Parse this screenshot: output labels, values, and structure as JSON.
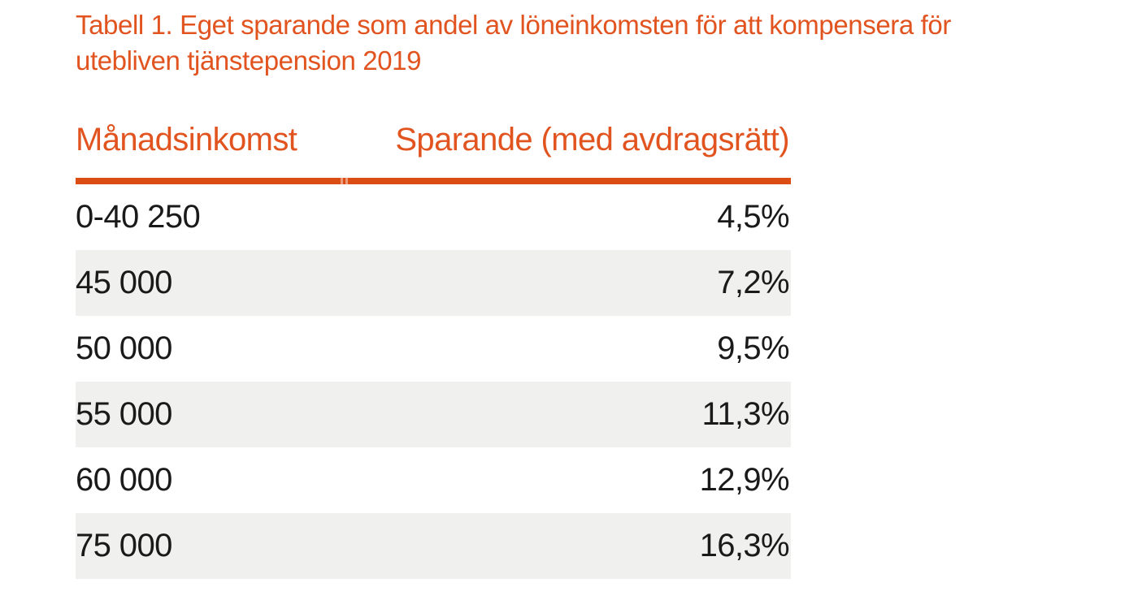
{
  "title": {
    "line1": "Tabell 1. Eget sparande som andel av löneinkomsten för att kompensera för",
    "line2": "utebliven tjänstepension 2019"
  },
  "chart_data": {
    "type": "table",
    "title": "Tabell 1. Eget sparande som andel av löneinkomsten för att kompensera för utebliven tjänstepension 2019",
    "columns": [
      "Månadsinkomst",
      "Sparande (med avdragsrätt)"
    ],
    "rows": [
      [
        "0-40 250",
        "4,5%"
      ],
      [
        "45 000",
        "7,2%"
      ],
      [
        "50 000",
        "9,5%"
      ],
      [
        "55 000",
        "11,3%"
      ],
      [
        "60 000",
        "12,9%"
      ],
      [
        "75 000",
        "16,3%"
      ]
    ],
    "categories": [
      "0-40 250",
      "45 000",
      "50 000",
      "55 000",
      "60 000",
      "75 000"
    ],
    "values": [
      4.5,
      7.2,
      9.5,
      11.3,
      12.9,
      16.3
    ],
    "value_unit": "%",
    "year": "2019",
    "layout": {
      "zebra_striping": true,
      "value_alignment": "right",
      "header_rule": true
    }
  },
  "colors": {
    "accent": "#E1531F",
    "rule": "#DB4D13",
    "row_alt": "#F0F0EF",
    "ink": "#1A1A1A",
    "bg": "#FFFFFF"
  }
}
